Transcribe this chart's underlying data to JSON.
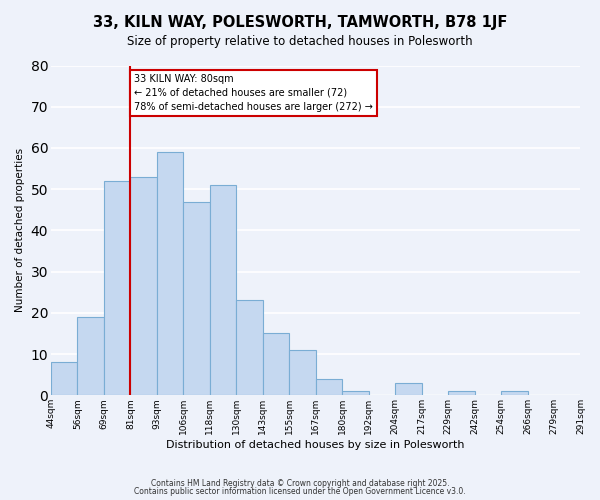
{
  "title": "33, KILN WAY, POLESWORTH, TAMWORTH, B78 1JF",
  "subtitle": "Size of property relative to detached houses in Polesworth",
  "xlabel": "Distribution of detached houses by size in Polesworth",
  "ylabel": "Number of detached properties",
  "bar_values": [
    8,
    19,
    52,
    53,
    59,
    47,
    51,
    23,
    15,
    11,
    4,
    1,
    0,
    3,
    0,
    1,
    0,
    1,
    0,
    0
  ],
  "x_tick_labels": [
    "44sqm",
    "56sqm",
    "69sqm",
    "81sqm",
    "93sqm",
    "106sqm",
    "118sqm",
    "130sqm",
    "143sqm",
    "155sqm",
    "167sqm",
    "180sqm",
    "192sqm",
    "204sqm",
    "217sqm",
    "229sqm",
    "242sqm",
    "254sqm",
    "266sqm",
    "279sqm",
    "291sqm"
  ],
  "bar_color": "#c5d8f0",
  "bar_edge_color": "#7aadd4",
  "vline_x": 3,
  "vline_color": "#cc0000",
  "annotation_title": "33 KILN WAY: 80sqm",
  "annotation_line1": "← 21% of detached houses are smaller (72)",
  "annotation_line2": "78% of semi-detached houses are larger (272) →",
  "annotation_box_color": "#ffffff",
  "annotation_box_edge": "#cc0000",
  "ylim": [
    0,
    80
  ],
  "yticks": [
    0,
    10,
    20,
    30,
    40,
    50,
    60,
    70,
    80
  ],
  "footer1": "Contains HM Land Registry data © Crown copyright and database right 2025.",
  "footer2": "Contains public sector information licensed under the Open Government Licence v3.0.",
  "bg_color": "#eef2fa",
  "grid_color": "#ffffff"
}
